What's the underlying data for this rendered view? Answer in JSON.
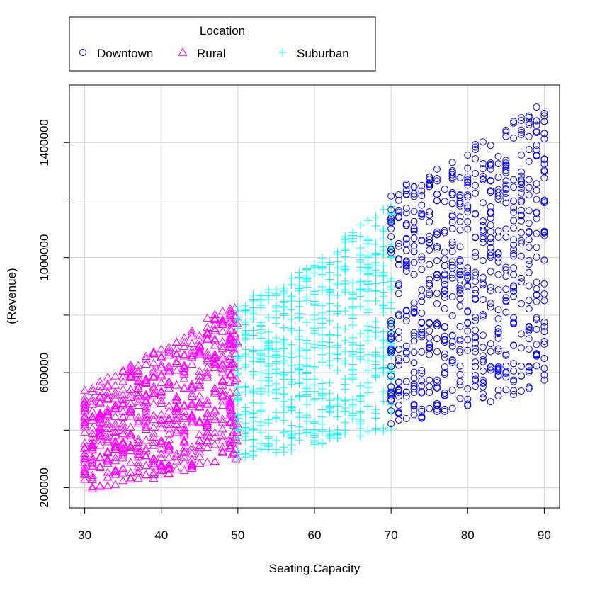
{
  "chart_data": {
    "type": "scatter",
    "title": "",
    "xlabel": "Seating.Capacity",
    "ylabel": "(Revenue)",
    "xlim": [
      28,
      92
    ],
    "ylim": [
      130000,
      1600000
    ],
    "x_ticks": [
      30,
      40,
      50,
      60,
      70,
      80,
      90
    ],
    "x_tick_labels": [
      "30",
      "40",
      "50",
      "60",
      "70",
      "80",
      "90"
    ],
    "y_ticks": [
      200000,
      400000,
      600000,
      800000,
      1000000,
      1200000,
      1400000
    ],
    "y_tick_labels": [
      "200000",
      "",
      "600000",
      "",
      "1000000",
      "",
      "1400000"
    ],
    "grid": true,
    "legend": {
      "title": "Location",
      "placement": "top-left",
      "entries": [
        {
          "label": "Downtown",
          "marker": "circle",
          "color": "#0000ff"
        },
        {
          "label": "Rural",
          "marker": "triangle",
          "color": "#ff00ff"
        },
        {
          "label": "Suburban",
          "marker": "plus",
          "color": "#00ffff"
        }
      ]
    },
    "series": [
      {
        "name": "Rural",
        "marker": "triangle",
        "color": "#ff00ff",
        "x_range": [
          30,
          49
        ],
        "y_low": [
          [
            30,
            190000
          ],
          [
            40,
            235000
          ],
          [
            49,
            300000
          ]
        ],
        "y_high": [
          [
            30,
            540000
          ],
          [
            40,
            690000
          ],
          [
            49,
            840000
          ]
        ],
        "extra_band": {
          "x_range": [
            49,
            50
          ],
          "y_low": 300000,
          "y_high": 860000
        },
        "n_points_per_x": 34
      },
      {
        "name": "Suburban",
        "marker": "plus",
        "color": "#00ffff",
        "x_range": [
          50,
          70
        ],
        "y_low": [
          [
            50,
            290000
          ],
          [
            60,
            345000
          ],
          [
            70,
            400000
          ]
        ],
        "y_high": [
          [
            50,
            840000
          ],
          [
            60,
            1000000
          ],
          [
            70,
            1190000
          ]
        ],
        "n_points_per_x": 34
      },
      {
        "name": "Downtown",
        "marker": "circle",
        "color": "#0000ff",
        "x_range": [
          70,
          90
        ],
        "y_low": [
          [
            70,
            420000
          ],
          [
            80,
            470000
          ],
          [
            90,
            560000
          ]
        ],
        "y_high": [
          [
            70,
            1230000
          ],
          [
            80,
            1380000
          ],
          [
            90,
            1540000
          ]
        ],
        "n_points_per_x": 34
      }
    ]
  }
}
